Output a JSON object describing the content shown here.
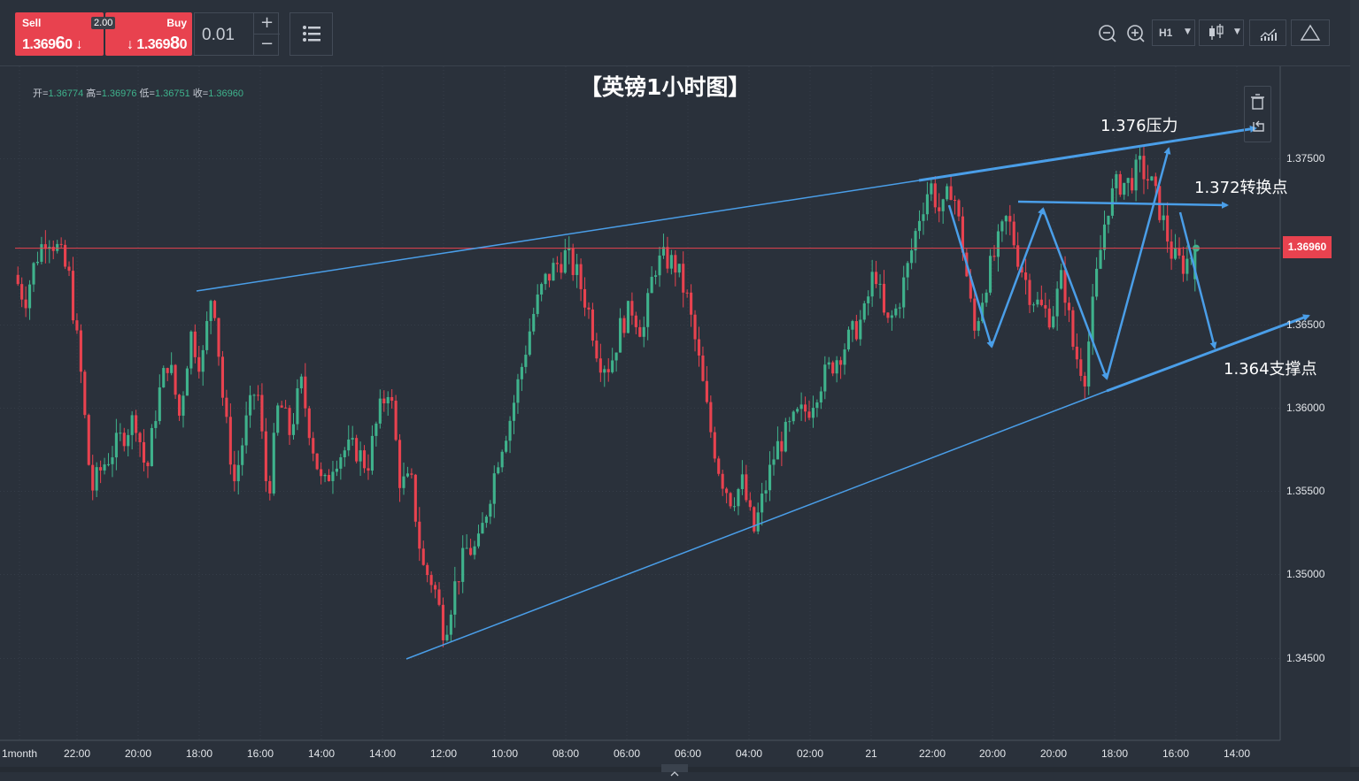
{
  "toolbar": {
    "sell": {
      "label": "Sell",
      "price_main": "1.369",
      "price_big": "6",
      "price_end": "0",
      "arrow": "↓"
    },
    "buy": {
      "label": "Buy",
      "price_main": "1.369",
      "price_big": "8",
      "price_end": "0",
      "arrow": "↓"
    },
    "spread": "2.00",
    "quantity": "0.01",
    "qty_plus": "+",
    "qty_minus": "−",
    "timeframe": "H1",
    "icons": [
      "zoom-out-icon",
      "zoom-in-icon",
      "candlestick-icon",
      "indicators-icon",
      "drawing-triangle-icon",
      "menu-list-icon"
    ]
  },
  "chart": {
    "title": "【英镑1小时图】",
    "ohlc": {
      "open_label": "开=",
      "open": "1.36774",
      "high_label": "高=",
      "high": "1.36976",
      "low_label": "低=",
      "low": "1.36751",
      "close_label": "收=",
      "close": "1.36960"
    },
    "current_price": "1.36960",
    "y_ticks": [
      "1.37500",
      "1.36500",
      "1.36000",
      "1.35500",
      "1.35000",
      "1.34500"
    ],
    "x_ticks": [
      "1month",
      "22:00",
      "20:00",
      "18:00",
      "16:00",
      "14:00",
      "14:00",
      "12:00",
      "10:00",
      "08:00",
      "06:00",
      "06:00",
      "04:00",
      "02:00",
      "21",
      "22:00",
      "20:00",
      "20:00",
      "18:00",
      "16:00",
      "14:00"
    ],
    "annotations": {
      "resistance": "1.376压力",
      "pivot": "1.372转换点",
      "support": "1.364支撑点"
    },
    "colors": {
      "up": "#3fb28c",
      "down": "#e8424f",
      "line": "#4a9ee8",
      "price_line": "#e8424f"
    }
  },
  "chart_data": {
    "type": "candlestick",
    "title": "【英镑1小时图】",
    "timeframe": "H1",
    "ylim": [
      1.3415,
      1.3795
    ],
    "y_ticks": [
      1.345,
      1.35,
      1.355,
      1.36,
      1.365,
      1.375
    ],
    "current_price": 1.3696,
    "last_bar": {
      "open": 1.36774,
      "high": 1.36976,
      "low": 1.36751,
      "close": 1.3696
    },
    "price_path": [
      1.368,
      1.3665,
      1.369,
      1.3705,
      1.3695,
      1.3678,
      1.3625,
      1.355,
      1.3565,
      1.3575,
      1.3585,
      1.3595,
      1.356,
      1.3605,
      1.363,
      1.3595,
      1.3645,
      1.3625,
      1.3675,
      1.36,
      1.3555,
      1.359,
      1.3615,
      1.3545,
      1.3605,
      1.3585,
      1.3615,
      1.358,
      1.355,
      1.357,
      1.3575,
      1.3575,
      1.3565,
      1.3595,
      1.3615,
      1.3555,
      1.3555,
      1.3505,
      1.3495,
      1.3465,
      1.3495,
      1.3515,
      1.3515,
      1.3545,
      1.3575,
      1.3595,
      1.3625,
      1.3655,
      1.3675,
      1.3685,
      1.3692,
      1.368,
      1.366,
      1.363,
      1.3625,
      1.365,
      1.366,
      1.3645,
      1.3685,
      1.369,
      1.3685,
      1.3665,
      1.363,
      1.359,
      1.356,
      1.3545,
      1.3555,
      1.3525,
      1.355,
      1.3575,
      1.3585,
      1.3595,
      1.36,
      1.3615,
      1.3625,
      1.3635,
      1.3645,
      1.3655,
      1.3685,
      1.3648,
      1.366,
      1.3685,
      1.3715,
      1.3735,
      1.3715,
      1.3735,
      1.3695,
      1.3645,
      1.3675,
      1.3695,
      1.3715,
      1.369,
      1.367,
      1.366,
      1.3655,
      1.368,
      1.3635,
      1.362,
      1.3675,
      1.372,
      1.3735,
      1.3735,
      1.3745,
      1.3735,
      1.3715,
      1.369,
      1.3686,
      1.3696
    ],
    "lines": [
      {
        "name": "resistance",
        "from": [
          1.3672,
          0.155
        ],
        "to": [
          1.3768,
          0.99
        ],
        "label": "1.376压力"
      },
      {
        "name": "support",
        "from": [
          1.3452,
          0.32
        ],
        "to": [
          1.3655,
          1.025
        ],
        "label": "1.364支撑点"
      },
      {
        "name": "pivot",
        "value": 1.3722,
        "label": "1.372转换点"
      }
    ]
  }
}
